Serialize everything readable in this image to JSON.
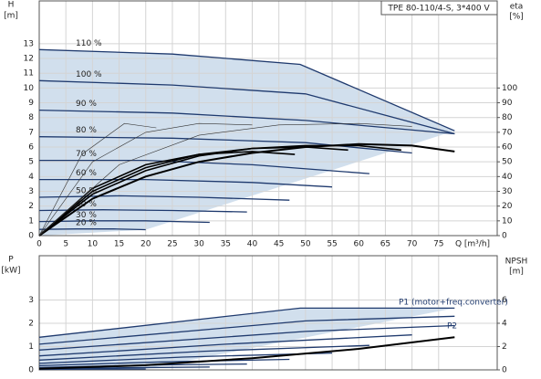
{
  "chart_data": [
    {
      "type": "line",
      "title": "TPE 80-110/4-S, 3*400 V",
      "y_label": "H",
      "y_unit": "[m]",
      "y2_label": "eta",
      "y2_unit": "[%]",
      "x_label": "Q [m³/h]",
      "xlim": [
        0,
        86
      ],
      "ylim": [
        0,
        15.9
      ],
      "y2lim": [
        0,
        159
      ],
      "grid": true,
      "fill": "#c9d9ea",
      "xticks": [
        0,
        5,
        10,
        15,
        20,
        25,
        30,
        35,
        40,
        45,
        50,
        55,
        60,
        65,
        70,
        75
      ],
      "yticks": [
        0,
        1,
        2,
        3,
        4,
        5,
        6,
        7,
        8,
        9,
        10,
        11,
        12,
        13
      ],
      "y2ticks": [
        0,
        10,
        20,
        30,
        40,
        50,
        60,
        70,
        80,
        90,
        100
      ],
      "series": [
        {
          "name": "110 %",
          "color": "#1f3a6e",
          "width": 1.3,
          "x": [
            0,
            25,
            49,
            78
          ],
          "values": [
            12.6,
            12.3,
            11.6,
            7.1
          ]
        },
        {
          "name": "100 %",
          "color": "#1f3a6e",
          "width": 1.3,
          "x": [
            0,
            25,
            50,
            78
          ],
          "values": [
            10.5,
            10.2,
            9.6,
            6.9
          ]
        },
        {
          "name": "90 %",
          "color": "#1f3a6e",
          "width": 1.3,
          "x": [
            0,
            25,
            50,
            78
          ],
          "values": [
            8.5,
            8.3,
            7.8,
            6.9
          ]
        },
        {
          "name": "80 %",
          "color": "#1f3a6e",
          "width": 1.3,
          "x": [
            0,
            25,
            50,
            70
          ],
          "values": [
            6.7,
            6.6,
            6.3,
            5.6
          ]
        },
        {
          "name": "70 %",
          "color": "#1f3a6e",
          "width": 1.3,
          "x": [
            0,
            20,
            40,
            62
          ],
          "values": [
            5.1,
            5.1,
            4.8,
            4.2
          ]
        },
        {
          "name": "60 %",
          "color": "#1f3a6e",
          "width": 1.3,
          "x": [
            0,
            20,
            40,
            55
          ],
          "values": [
            3.8,
            3.8,
            3.6,
            3.3
          ]
        },
        {
          "name": "50 %",
          "color": "#1f3a6e",
          "width": 1.3,
          "x": [
            0,
            15,
            30,
            47
          ],
          "values": [
            2.6,
            2.7,
            2.6,
            2.4
          ]
        },
        {
          "name": "40 %",
          "color": "#1f3a6e",
          "width": 1.3,
          "x": [
            0,
            12,
            25,
            39
          ],
          "values": [
            1.7,
            1.75,
            1.7,
            1.6
          ]
        },
        {
          "name": "30 %",
          "color": "#1f3a6e",
          "width": 1.3,
          "x": [
            0,
            10,
            20,
            32
          ],
          "values": [
            0.95,
            1.0,
            1.0,
            0.9
          ]
        },
        {
          "name": "20 %",
          "color": "#1f3a6e",
          "width": 1.3,
          "x": [
            0,
            7,
            14,
            20
          ],
          "values": [
            0.42,
            0.45,
            0.45,
            0.4
          ]
        },
        {
          "axis": "y2",
          "color": "#000000",
          "width": 2,
          "x": [
            0,
            10,
            20,
            30,
            40,
            50,
            60,
            70,
            78
          ],
          "values": [
            0,
            25,
            40,
            50,
            56,
            60,
            62,
            61,
            57
          ]
        },
        {
          "axis": "y2",
          "color": "#000000",
          "width": 1.6,
          "x": [
            0,
            10,
            20,
            30,
            40,
            50,
            60,
            68
          ],
          "values": [
            0,
            28,
            44,
            54,
            59,
            61,
            61,
            58
          ]
        },
        {
          "axis": "y2",
          "color": "#000000",
          "width": 1.6,
          "x": [
            0,
            10,
            20,
            30,
            40,
            50,
            58
          ],
          "values": [
            0,
            30,
            46,
            55,
            59,
            60,
            58
          ]
        },
        {
          "axis": "y2",
          "color": "#000000",
          "width": 1.6,
          "x": [
            0,
            10,
            20,
            30,
            40,
            48
          ],
          "values": [
            0,
            32,
            48,
            55,
            57,
            55
          ]
        },
        {
          "axis": "y2",
          "color": "#333333",
          "width": 0.6,
          "x": [
            0,
            8,
            16,
            22
          ],
          "values": [
            0,
            55,
            76,
            73
          ]
        },
        {
          "axis": "y2",
          "color": "#333333",
          "width": 0.6,
          "x": [
            0,
            10,
            20,
            30,
            40
          ],
          "values": [
            0,
            50,
            70,
            76,
            75
          ]
        },
        {
          "axis": "y2",
          "color": "#333333",
          "width": 0.6,
          "x": [
            0,
            15,
            30,
            45,
            60,
            70
          ],
          "values": [
            0,
            48,
            68,
            75,
            76,
            74
          ]
        }
      ]
    },
    {
      "type": "line",
      "y_label": "P",
      "y_unit": "[kW]",
      "y2_label": "NPSH",
      "y2_unit": "[m]",
      "xlim": [
        0,
        86
      ],
      "ylim": [
        0,
        4.9
      ],
      "y2lim": [
        0,
        9.8
      ],
      "grid": true,
      "fill": "#c9d9ea",
      "xticks": [
        0,
        5,
        10,
        15,
        20,
        25,
        30,
        35,
        40,
        45,
        50,
        55,
        60,
        65,
        70,
        75
      ],
      "yticks": [
        0,
        1,
        2,
        3
      ],
      "y2ticks": [
        0,
        2,
        4,
        6
      ],
      "annotations": [
        "P1 (motor+freq.converter)",
        "P2"
      ],
      "series": [
        {
          "color": "#1f3a6e",
          "width": 1.3,
          "x": [
            0,
            49,
            78
          ],
          "values": [
            1.4,
            2.65,
            2.65
          ]
        },
        {
          "color": "#1f3a6e",
          "width": 1.3,
          "x": [
            0,
            50,
            78
          ],
          "values": [
            1.1,
            2.1,
            2.3
          ]
        },
        {
          "color": "#1f3a6e",
          "width": 1.3,
          "x": [
            0,
            50,
            78
          ],
          "values": [
            0.85,
            1.65,
            1.9
          ]
        },
        {
          "color": "#1f3a6e",
          "width": 1.3,
          "x": [
            0,
            35,
            70
          ],
          "values": [
            0.6,
            1.1,
            1.5
          ]
        },
        {
          "color": "#1f3a6e",
          "width": 1.3,
          "x": [
            0,
            31,
            62
          ],
          "values": [
            0.42,
            0.8,
            1.05
          ]
        },
        {
          "color": "#1f3a6e",
          "width": 1.3,
          "x": [
            0,
            27,
            55
          ],
          "values": [
            0.28,
            0.55,
            0.72
          ]
        },
        {
          "color": "#1f3a6e",
          "width": 1.3,
          "x": [
            0,
            23,
            47
          ],
          "values": [
            0.18,
            0.34,
            0.45
          ]
        },
        {
          "color": "#1f3a6e",
          "width": 1.3,
          "x": [
            0,
            19,
            39
          ],
          "values": [
            0.1,
            0.2,
            0.25
          ]
        },
        {
          "color": "#1f3a6e",
          "width": 1.3,
          "x": [
            0,
            16,
            32
          ],
          "values": [
            0.05,
            0.09,
            0.12
          ]
        },
        {
          "color": "#1f3a6e",
          "width": 1.3,
          "x": [
            0,
            10,
            20
          ],
          "values": [
            0.02,
            0.03,
            0.04
          ]
        },
        {
          "axis": "y2",
          "color": "#000000",
          "width": 2,
          "x": [
            0,
            20,
            40,
            60,
            78
          ],
          "values": [
            0.1,
            0.4,
            1.0,
            1.8,
            2.8
          ]
        }
      ]
    }
  ]
}
